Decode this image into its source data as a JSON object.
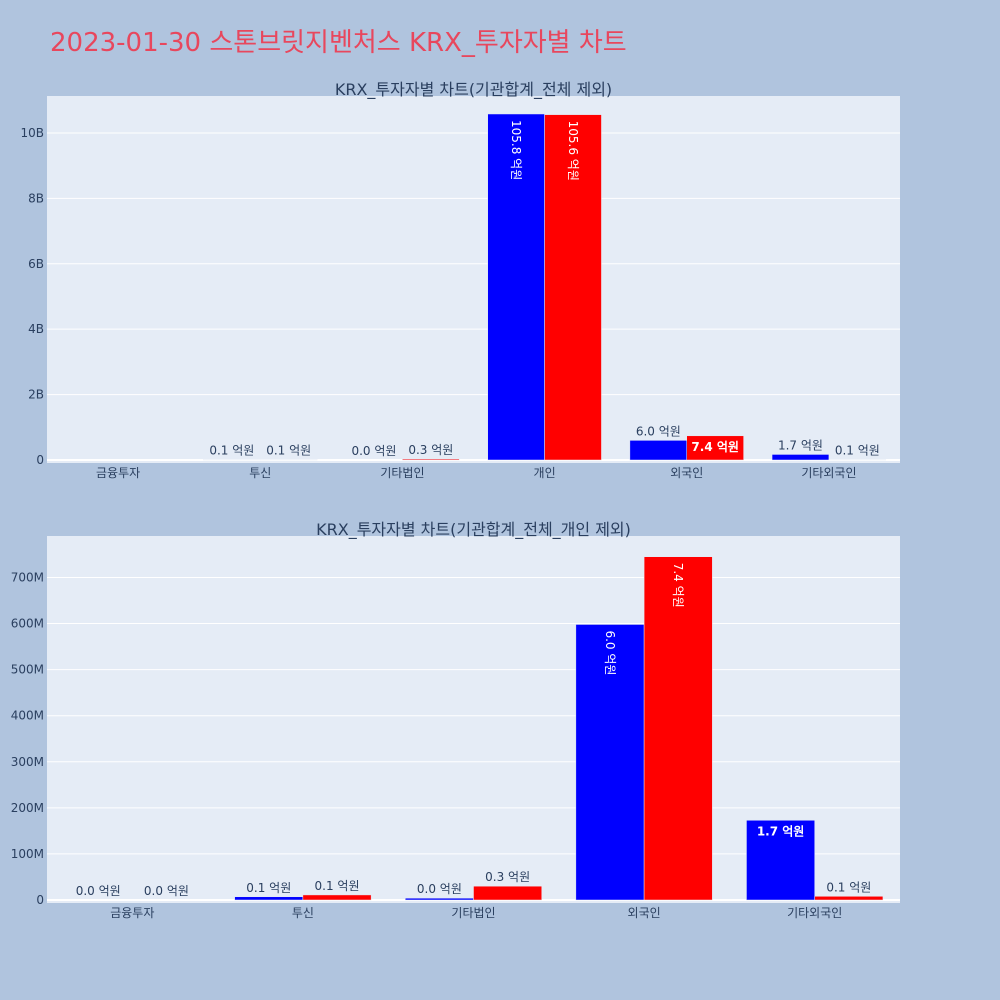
{
  "page_title": "2023-01-30 스톤브릿지벤처스 KRX_투자자별 차트",
  "colors": {
    "background": "#b0c4de",
    "plot_background": "#e5ecf6",
    "title": "#e8475d",
    "text": "#2a3f5f",
    "series_1": "#0000ff",
    "series_2": "#ff0000"
  },
  "chart_data": [
    {
      "type": "bar",
      "title": "KRX_투자자별 차트(기관합계_전체 제외)",
      "categories": [
        "금융투자",
        "투신",
        "기타법인",
        "개인",
        "외국인",
        "기타외국인"
      ],
      "series": [
        {
          "color": "#0000ff",
          "values": [
            0,
            10000000,
            0,
            10580000000,
            600000000,
            170000000
          ],
          "labels": [
            "",
            "0.1 억원",
            "0.0 억원",
            "105.8 억원",
            "6.0 억원",
            "1.7 억원"
          ]
        },
        {
          "color": "#ff0000",
          "values": [
            0,
            10000000,
            30000000,
            10560000000,
            740000000,
            10000000
          ],
          "labels": [
            "",
            "0.1 억원",
            "0.3 억원",
            "105.6 억원",
            "7.4 억원",
            "0.1 억원"
          ]
        }
      ],
      "y_ticks": [
        {
          "value": 0,
          "label": "0"
        },
        {
          "value": 2000000000,
          "label": "2B"
        },
        {
          "value": 4000000000,
          "label": "4B"
        },
        {
          "value": 6000000000,
          "label": "6B"
        },
        {
          "value": 8000000000,
          "label": "8B"
        },
        {
          "value": 10000000000,
          "label": "10B"
        }
      ],
      "ylim": [
        0,
        11130000000
      ],
      "grid": true,
      "legend": "none"
    },
    {
      "type": "bar",
      "title": "KRX_투자자별 차트(기관합계_전체_개인 제외)",
      "categories": [
        "금융투자",
        "투신",
        "기타법인",
        "외국인",
        "기타외국인"
      ],
      "series": [
        {
          "color": "#0000ff",
          "values": [
            0,
            7000000,
            4000000,
            598000000,
            173000000
          ],
          "labels": [
            "0.0 억원",
            "0.1 억원",
            "0.0 억원",
            "6.0 억원",
            "1.7 억원"
          ]
        },
        {
          "color": "#ff0000",
          "values": [
            0,
            11000000,
            30000000,
            745000000,
            8000000
          ],
          "labels": [
            "0.0 억원",
            "0.1 억원",
            "0.3 억원",
            "7.4 억원",
            "0.1 억원"
          ]
        }
      ],
      "y_ticks": [
        {
          "value": 0,
          "label": "0"
        },
        {
          "value": 100000000,
          "label": "100M"
        },
        {
          "value": 200000000,
          "label": "200M"
        },
        {
          "value": 300000000,
          "label": "300M"
        },
        {
          "value": 400000000,
          "label": "400M"
        },
        {
          "value": 500000000,
          "label": "500M"
        },
        {
          "value": 600000000,
          "label": "600M"
        },
        {
          "value": 700000000,
          "label": "700M"
        }
      ],
      "ylim": [
        0,
        790000000
      ],
      "grid": true,
      "legend": "none"
    }
  ]
}
